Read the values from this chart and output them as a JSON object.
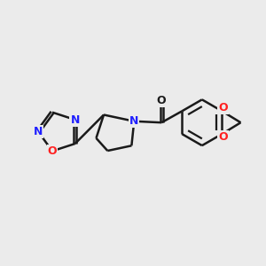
{
  "background_color": "#ebebeb",
  "bond_color": "#1a1a1a",
  "n_color": "#2020ff",
  "o_color": "#ff2020",
  "line_width": 1.8,
  "figsize": [
    3.0,
    3.0
  ],
  "dpi": 100,
  "xlim": [
    0,
    10
  ],
  "ylim": [
    0,
    10
  ]
}
